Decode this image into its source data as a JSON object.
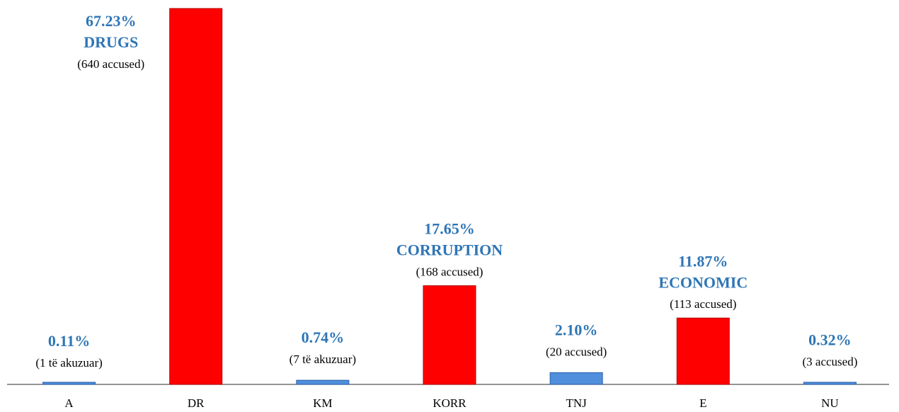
{
  "chart_data": {
    "type": "bar",
    "categories": [
      "A",
      "DR",
      "KM",
      "KORR",
      "TNJ",
      "E",
      "NU"
    ],
    "values": [
      0.11,
      67.23,
      0.74,
      17.65,
      2.1,
      11.87,
      0.32
    ],
    "value_labels": [
      "0.11%",
      "67.23%",
      "0.74%",
      "17.65%",
      "2.10%",
      "11.87%",
      "0.32%"
    ],
    "names": [
      null,
      "DRUGS",
      null,
      "CORRUPTION",
      null,
      "ECONOMIC",
      null
    ],
    "count_labels": [
      "(1 të akuzuar)",
      "(640 accused)",
      "(7 të akuzuar)",
      "(168 accused)",
      "(20 accused)",
      "(113 accused)",
      "(3 accused)"
    ],
    "colors": [
      "#4f8fdc",
      "#ff0000",
      "#4f8fdc",
      "#ff0000",
      "#4f8fdc",
      "#ff0000",
      "#4f8fdc"
    ]
  }
}
